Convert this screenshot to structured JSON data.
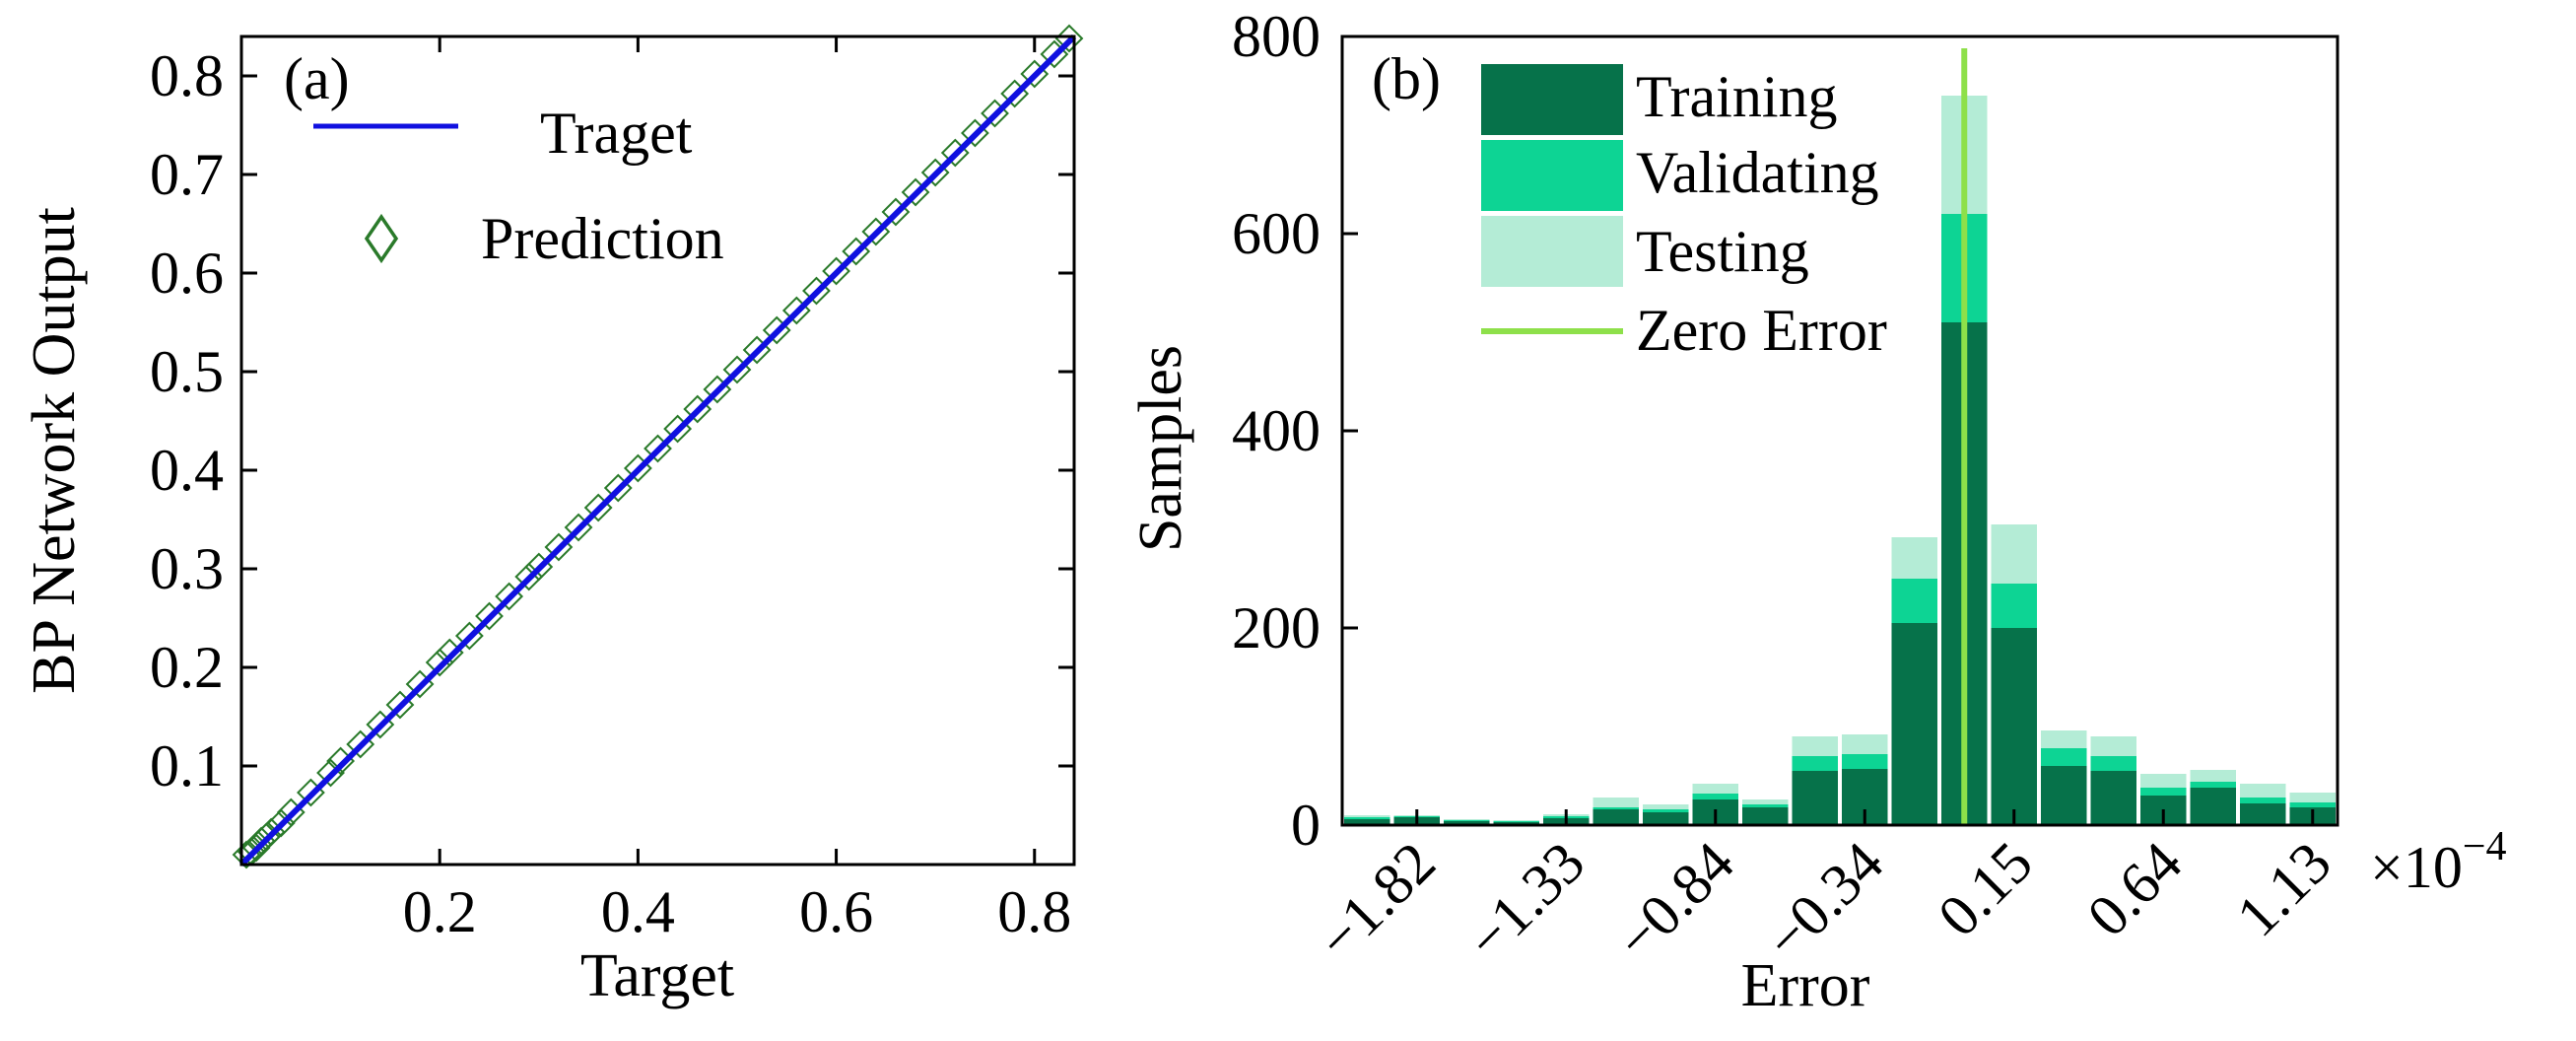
{
  "chart_data": [
    {
      "type": "scatter",
      "panel_label": "(a)",
      "xlabel": "Target",
      "ylabel": "BP Network Output",
      "xlim": [
        0.0,
        0.84
      ],
      "ylim": [
        0.0,
        0.84
      ],
      "xticks": [
        0.2,
        0.4,
        0.6,
        0.8
      ],
      "xtick_labels": [
        "0.2",
        "0.4",
        "0.6",
        "0.8"
      ],
      "yticks": [
        0.1,
        0.2,
        0.3,
        0.4,
        0.5,
        0.6,
        0.7,
        0.8
      ],
      "ytick_labels": [
        "0.1",
        "0.2",
        "0.3",
        "0.4",
        "0.5",
        "0.6",
        "0.7",
        "0.8"
      ],
      "legend_position": "top-left",
      "series": [
        {
          "name": "Traget",
          "kind": "line",
          "color": "#1010e0",
          "x": [
            0.0,
            0.84
          ],
          "y": [
            0.0,
            0.84
          ]
        },
        {
          "name": "Prediction",
          "kind": "scatter",
          "marker": "diamond",
          "color": "#2a7a2a",
          "x": [
            0.005,
            0.01,
            0.015,
            0.02,
            0.025,
            0.03,
            0.04,
            0.05,
            0.07,
            0.09,
            0.1,
            0.12,
            0.14,
            0.16,
            0.18,
            0.2,
            0.21,
            0.23,
            0.25,
            0.27,
            0.29,
            0.3,
            0.32,
            0.34,
            0.36,
            0.38,
            0.4,
            0.42,
            0.44,
            0.46,
            0.48,
            0.5,
            0.52,
            0.54,
            0.56,
            0.58,
            0.6,
            0.62,
            0.64,
            0.66,
            0.68,
            0.7,
            0.72,
            0.74,
            0.76,
            0.78,
            0.8,
            0.82,
            0.835
          ],
          "y": [
            0.01,
            0.013,
            0.017,
            0.024,
            0.028,
            0.033,
            0.042,
            0.053,
            0.073,
            0.093,
            0.105,
            0.122,
            0.142,
            0.162,
            0.183,
            0.205,
            0.215,
            0.232,
            0.252,
            0.272,
            0.292,
            0.302,
            0.322,
            0.342,
            0.362,
            0.382,
            0.402,
            0.422,
            0.442,
            0.462,
            0.482,
            0.502,
            0.522,
            0.542,
            0.562,
            0.582,
            0.602,
            0.622,
            0.642,
            0.662,
            0.682,
            0.702,
            0.722,
            0.742,
            0.762,
            0.782,
            0.802,
            0.822,
            0.838
          ]
        }
      ]
    },
    {
      "type": "bar",
      "stacked": true,
      "panel_label": "(b)",
      "xlabel": "Error",
      "ylabel": "Samples",
      "x_multiplier_base": "×10",
      "x_multiplier_exp": "−4",
      "ylim": [
        0,
        800
      ],
      "yticks": [
        0,
        200,
        400,
        600,
        800
      ],
      "ytick_labels": [
        "0",
        "200",
        "400",
        "600",
        "800"
      ],
      "xlim_bins": [
        0,
        20
      ],
      "xtick_positions": [
        1.5,
        4.5,
        7.5,
        10.5,
        13.5,
        16.5,
        19.5
      ],
      "xtick_labels": [
        "−1.82",
        "−1.33",
        "−0.84",
        "−0.34",
        "0.15",
        "0.64",
        "1.13"
      ],
      "zero_error_bin_position": 12.5,
      "legend_position": "top-left",
      "colors": {
        "training": "#06724a",
        "validating": "#0dd494",
        "testing": "#b4ecd6",
        "zero_error": "#8ee04a"
      },
      "series": [
        {
          "name": "Training",
          "values": [
            6,
            8,
            4,
            3,
            7,
            16,
            13,
            26,
            18,
            55,
            57,
            205,
            510,
            200,
            60,
            55,
            30,
            38,
            22,
            18
          ]
        },
        {
          "name": "Validating",
          "values": [
            2,
            1,
            1,
            1,
            2,
            2,
            3,
            6,
            3,
            15,
            15,
            45,
            110,
            45,
            18,
            15,
            8,
            6,
            6,
            5
          ]
        },
        {
          "name": "Testing",
          "values": [
            2,
            1,
            1,
            1,
            2,
            10,
            5,
            10,
            5,
            20,
            20,
            42,
            120,
            60,
            18,
            20,
            14,
            12,
            14,
            10
          ]
        }
      ],
      "zero_error_label": "Zero Error"
    }
  ]
}
